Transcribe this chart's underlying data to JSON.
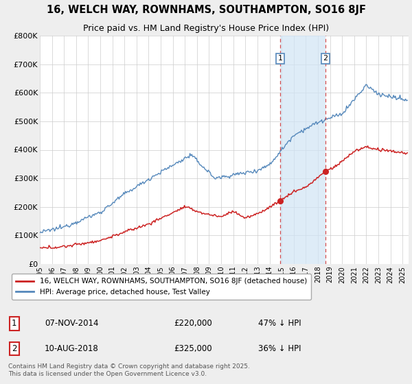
{
  "title": "16, WELCH WAY, ROWNHAMS, SOUTHAMPTON, SO16 8JF",
  "subtitle": "Price paid vs. HM Land Registry's House Price Index (HPI)",
  "ylabel_ticks": [
    "£0",
    "£100K",
    "£200K",
    "£300K",
    "£400K",
    "£500K",
    "£600K",
    "£700K",
    "£800K"
  ],
  "ylim": [
    0,
    800000
  ],
  "xlim_start": 1995,
  "xlim_end": 2025.5,
  "hpi_color": "#5588bb",
  "hpi_band_color": "#d0e4f5",
  "price_color": "#cc2222",
  "marker1_date_x": 2014.87,
  "marker2_date_x": 2018.62,
  "marker1_price": 220000,
  "marker2_price": 325000,
  "legend_label_price": "16, WELCH WAY, ROWNHAMS, SOUTHAMPTON, SO16 8JF (detached house)",
  "legend_label_hpi": "HPI: Average price, detached house, Test Valley",
  "footnote": "Contains HM Land Registry data © Crown copyright and database right 2025.\nThis data is licensed under the Open Government Licence v3.0.",
  "background_color": "#eeeeee",
  "plot_bg_color": "#ffffff",
  "grid_color": "#cccccc",
  "title_fontsize": 10.5,
  "subtitle_fontsize": 9
}
